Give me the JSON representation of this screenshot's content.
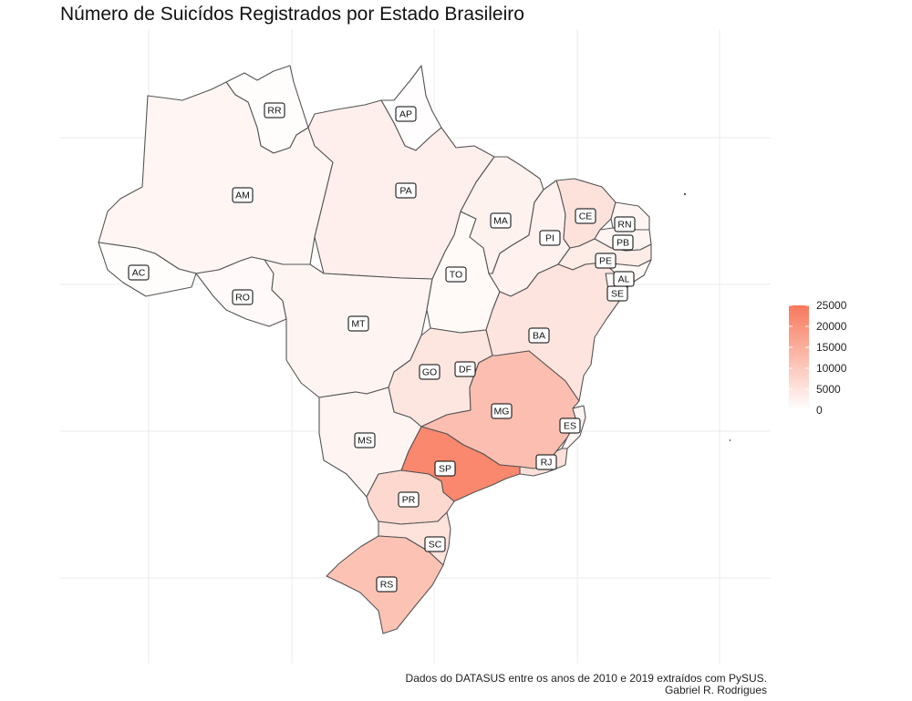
{
  "title": "Número de Suicídos Registrados por Estado Brasileiro",
  "caption_line1": "Dados do DATASUS entre os anos de 2010 e 2019 extraídos com PySUS.",
  "caption_line2": "Gabriel R. Rodrigues",
  "colors": {
    "low": "#ffffff",
    "high": "#f8785a",
    "border": "#555555"
  },
  "chart_data": {
    "type": "choropleth",
    "fill_scale": {
      "min": 0,
      "max": 25000
    },
    "legend": {
      "position": "right",
      "ticks": [
        0,
        5000,
        10000,
        15000,
        20000,
        25000
      ]
    },
    "grid": true,
    "states": [
      {
        "code": "AC",
        "value": 400
      },
      {
        "code": "AM",
        "value": 1700
      },
      {
        "code": "RR",
        "value": 400
      },
      {
        "code": "AP",
        "value": 300
      },
      {
        "code": "PA",
        "value": 2900
      },
      {
        "code": "RO",
        "value": 900
      },
      {
        "code": "MT",
        "value": 1900
      },
      {
        "code": "TO",
        "value": 1000
      },
      {
        "code": "MA",
        "value": 2400
      },
      {
        "code": "PI",
        "value": 2600
      },
      {
        "code": "CE",
        "value": 5400
      },
      {
        "code": "RN",
        "value": 1700
      },
      {
        "code": "PB",
        "value": 1800
      },
      {
        "code": "PE",
        "value": 3600
      },
      {
        "code": "AL",
        "value": 1100
      },
      {
        "code": "SE",
        "value": 1200
      },
      {
        "code": "BA",
        "value": 5000
      },
      {
        "code": "GO",
        "value": 4700
      },
      {
        "code": "DF",
        "value": 1700
      },
      {
        "code": "MG",
        "value": 12000
      },
      {
        "code": "ES",
        "value": 2000
      },
      {
        "code": "RJ",
        "value": 5700
      },
      {
        "code": "SP",
        "value": 22000
      },
      {
        "code": "MS",
        "value": 1800
      },
      {
        "code": "PR",
        "value": 7200
      },
      {
        "code": "SC",
        "value": 5300
      },
      {
        "code": "RS",
        "value": 11200
      }
    ]
  }
}
